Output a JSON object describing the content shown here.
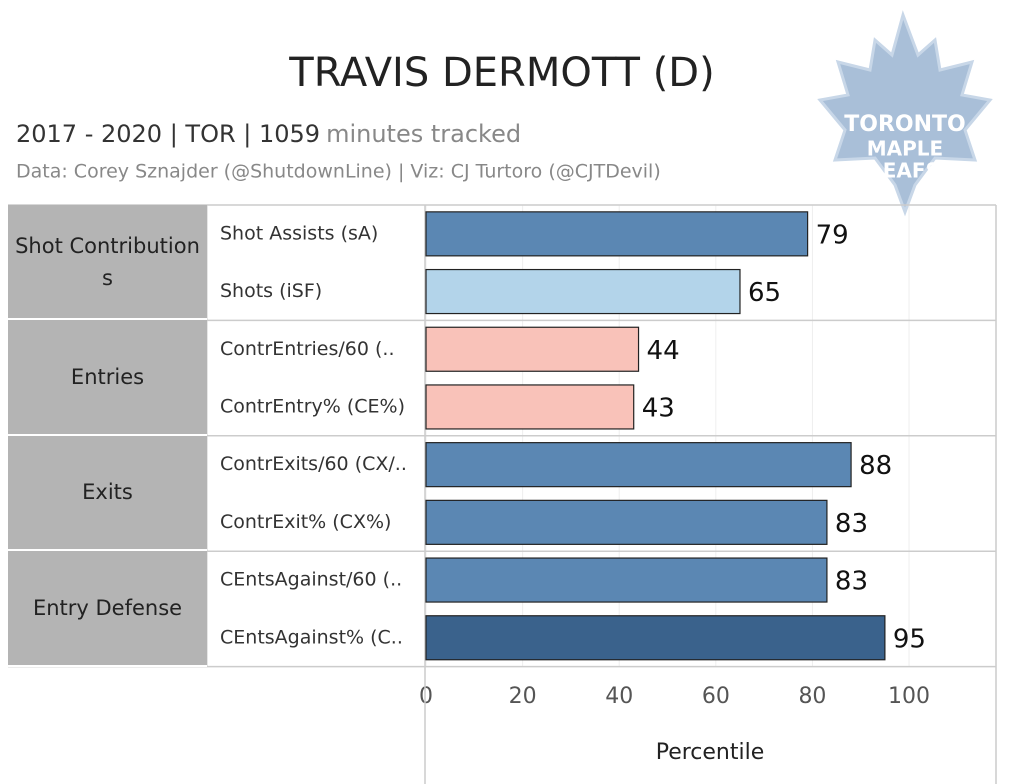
{
  "chart_data": {
    "type": "bar",
    "title": "TRAVIS DERMOTT (D)",
    "subtitle": [
      "2017 - 2020 |  TOR  | 1059",
      "minutes tracked"
    ],
    "credit": "Data: Corey Sznajder (@ShutdownLine) | Viz: CJ Turtoro (@CJTDevil)",
    "groups": [
      {
        "name": "Shot Contributions",
        "categories": [
          "Shot Assists (sA)",
          "Shots (iSF)"
        ],
        "values": [
          79,
          65
        ],
        "colors": [
          "#5b87b3",
          "#b3d4ea"
        ]
      },
      {
        "name": "Entries",
        "categories": [
          "ContrEntries/60 (..",
          "ContrEntry% (CE%)"
        ],
        "values": [
          44,
          43
        ],
        "colors": [
          "#f9c2b9",
          "#f9c2b9"
        ]
      },
      {
        "name": "Exits",
        "categories": [
          "ContrExits/60 (CX/..",
          "ContrExit% (CX%)"
        ],
        "values": [
          88,
          83
        ],
        "colors": [
          "#5b87b3",
          "#5b87b3"
        ]
      },
      {
        "name": "Entry Defense",
        "categories": [
          "CEntsAgainst/60 (..",
          "CEntsAgainst% (C.."
        ],
        "values": [
          83,
          95
        ],
        "colors": [
          "#5b87b3",
          "#3a628c"
        ]
      }
    ],
    "xlabel": "Percentile",
    "xlim": [
      0,
      118
    ],
    "xticks": [
      0,
      20,
      40,
      60,
      80,
      100
    ],
    "grid": true
  },
  "logo": {
    "lines": [
      "TORONTO",
      "MAPLE",
      "LEAFS"
    ]
  }
}
